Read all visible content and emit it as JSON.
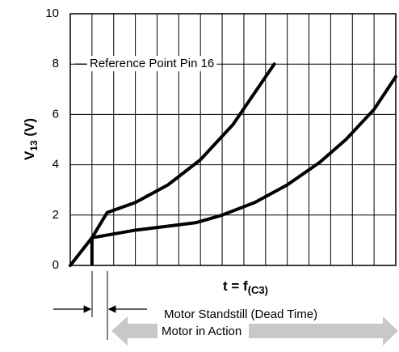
{
  "chart_data": {
    "type": "line",
    "ylabel": {
      "main": "V",
      "sub": "13",
      "unit": " (V)"
    },
    "xlabel": {
      "main": "t = f",
      "sub": "(C3)"
    },
    "annotations": [
      "Reference Point Pin 16",
      "Motor Standstill (Dead Time)",
      "Motor in Action"
    ],
    "xlim": [
      0,
      15
    ],
    "ylim": [
      0,
      10
    ],
    "yticks": [
      0,
      2,
      4,
      6,
      8,
      10
    ],
    "grid": true,
    "series": [
      {
        "color": "#000000",
        "x": [
          0,
          1,
          1.7,
          3,
          4.5,
          6,
          7.5,
          9.4
        ],
        "values": [
          0,
          1.1,
          2.1,
          2.5,
          3.2,
          4.2,
          5.6,
          8
        ]
      },
      {
        "color": "#000000",
        "x": [
          1,
          3,
          5.8,
          7,
          8.5,
          10,
          11.5,
          12.7,
          14,
          15
        ],
        "values": [
          1.1,
          1.4,
          1.7,
          2,
          2.5,
          3.2,
          4.1,
          5,
          6.2,
          7.5
        ]
      }
    ]
  }
}
